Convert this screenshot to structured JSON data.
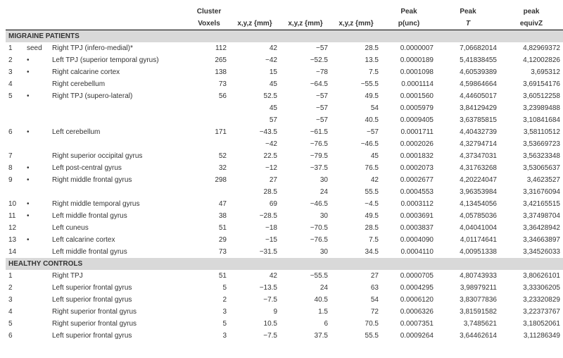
{
  "headers": {
    "cluster": "Cluster",
    "voxels": "Voxels",
    "coord": "x,y,z {mm}",
    "peak": "Peak",
    "peak_lower": "peak",
    "punc": "p(unc)",
    "t": "T",
    "z": "equivZ"
  },
  "sections": [
    {
      "title": "MIGRAINE PATIENTS",
      "rows": [
        {
          "idx": "1",
          "dot": "seed",
          "region": "Right TPJ (infero-medial)*",
          "voxels": "112",
          "x": "42",
          "y": "−57",
          "z": "28.5",
          "p": "0.0000007",
          "t": "7,06682014",
          "zv": "4,82969372"
        },
        {
          "idx": "2",
          "dot": "•",
          "region": "Left TPJ (superior temporal gyrus)",
          "voxels": "265",
          "x": "−42",
          "y": "−52.5",
          "z": "13.5",
          "p": "0.0000189",
          "t": "5,41838455",
          "zv": "4,12002826"
        },
        {
          "idx": "3",
          "dot": "•",
          "region": "Right calcarine cortex",
          "voxels": "138",
          "x": "15",
          "y": "−78",
          "z": "7.5",
          "p": "0.0001098",
          "t": "4,60539389",
          "zv": "3,695312"
        },
        {
          "idx": "4",
          "dot": "",
          "region": "Right cerebellum",
          "voxels": "73",
          "x": "45",
          "y": "−64.5",
          "z": "−55.5",
          "p": "0.0001114",
          "t": "4,59864664",
          "zv": "3,69154176"
        },
        {
          "idx": "5",
          "dot": "•",
          "region": "Right TPJ (supero-lateral)",
          "voxels": "56",
          "x": "52.5",
          "y": "−57",
          "z": "49.5",
          "p": "0.0001560",
          "t": "4,44605017",
          "zv": "3,60512258"
        },
        {
          "idx": "",
          "dot": "",
          "region": "",
          "voxels": "",
          "x": "45",
          "y": "−57",
          "z": "54",
          "p": "0.0005979",
          "t": "3,84129429",
          "zv": "3,23989488"
        },
        {
          "idx": "",
          "dot": "",
          "region": "",
          "voxels": "",
          "x": "57",
          "y": "−57",
          "z": "40.5",
          "p": "0.0009405",
          "t": "3,63785815",
          "zv": "3,10841684"
        },
        {
          "idx": "6",
          "dot": "•",
          "region": "Left cerebellum",
          "voxels": "171",
          "x": "−43.5",
          "y": "−61.5",
          "z": "−57",
          "p": "0.0001711",
          "t": "4,40432739",
          "zv": "3,58110512"
        },
        {
          "idx": "",
          "dot": "",
          "region": "",
          "voxels": "",
          "x": "−42",
          "y": "−76.5",
          "z": "−46.5",
          "p": "0.0002026",
          "t": "4,32794714",
          "zv": "3,53669723"
        },
        {
          "idx": "7",
          "dot": "",
          "region": "Right superior occipital gyrus",
          "voxels": "52",
          "x": "22.5",
          "y": "−79.5",
          "z": "45",
          "p": "0.0001832",
          "t": "4,37347031",
          "zv": "3,56323348"
        },
        {
          "idx": "8",
          "dot": "•",
          "region": "Left post-central gyrus",
          "voxels": "32",
          "x": "−12",
          "y": "−37.5",
          "z": "76.5",
          "p": "0.0002073",
          "t": "4,31763268",
          "zv": "3,53065637"
        },
        {
          "idx": "9",
          "dot": "•",
          "region": "Right middle frontal gyrus",
          "voxels": "298",
          "x": "27",
          "y": "30",
          "z": "42",
          "p": "0.0002677",
          "t": "4,20224047",
          "zv": "3,4623527"
        },
        {
          "idx": "",
          "dot": "",
          "region": "",
          "voxels": "",
          "x": "28.5",
          "y": "24",
          "z": "55.5",
          "p": "0.0004553",
          "t": "3,96353984",
          "zv": "3,31676094"
        },
        {
          "idx": "10",
          "dot": "•",
          "region": "Right middle temporal gyrus",
          "voxels": "47",
          "x": "69",
          "y": "−46.5",
          "z": "−4.5",
          "p": "0.0003112",
          "t": "4,13454056",
          "zv": "3,42165515"
        },
        {
          "idx": "11",
          "dot": "•",
          "region": "Left middle frontal gyrus",
          "voxels": "38",
          "x": "−28.5",
          "y": "30",
          "z": "49.5",
          "p": "0.0003691",
          "t": "4,05785036",
          "zv": "3,37498704"
        },
        {
          "idx": "12",
          "dot": "",
          "region": "Left cuneus",
          "voxels": "51",
          "x": "−18",
          "y": "−70.5",
          "z": "28.5",
          "p": "0.0003837",
          "t": "4,04041004",
          "zv": "3,36428942"
        },
        {
          "idx": "13",
          "dot": "•",
          "region": "Left calcarine cortex",
          "voxels": "29",
          "x": "−15",
          "y": "−76.5",
          "z": "7.5",
          "p": "0.0004090",
          "t": "4,01174641",
          "zv": "3,34663897"
        },
        {
          "idx": "14",
          "dot": "",
          "region": "Left middle frontal gyrus",
          "voxels": "73",
          "x": "−31.5",
          "y": "30",
          "z": "34.5",
          "p": "0.0004110",
          "t": "4,00951338",
          "zv": "3,34526033"
        }
      ]
    },
    {
      "title": "HEALTHY CONTROLS",
      "rows": [
        {
          "idx": "1",
          "dot": "",
          "region": "Right TPJ",
          "voxels": "51",
          "x": "42",
          "y": "−55.5",
          "z": "27",
          "p": "0.0000705",
          "t": "4,80743933",
          "zv": "3,80626101"
        },
        {
          "idx": "2",
          "dot": "",
          "region": "Left superior frontal gyrus",
          "voxels": "5",
          "x": "−13.5",
          "y": "24",
          "z": "63",
          "p": "0.0004295",
          "t": "3,98979211",
          "zv": "3,33306205"
        },
        {
          "idx": "3",
          "dot": "",
          "region": "Left superior frontal gyrus",
          "voxels": "2",
          "x": "−7.5",
          "y": "40.5",
          "z": "54",
          "p": "0.0006120",
          "t": "3,83077836",
          "zv": "3,23320829"
        },
        {
          "idx": "4",
          "dot": "",
          "region": "Right superior frontal gyrus",
          "voxels": "3",
          "x": "9",
          "y": "1.5",
          "z": "72",
          "p": "0.0006326",
          "t": "3,81591582",
          "zv": "3,22373767"
        },
        {
          "idx": "5",
          "dot": "",
          "region": "Right superior frontal gyrus",
          "voxels": "5",
          "x": "10.5",
          "y": "6",
          "z": "70.5",
          "p": "0.0007351",
          "t": "3,7485621",
          "zv": "3,18052061"
        },
        {
          "idx": "6",
          "dot": "",
          "region": "Left superior frontal gyrus",
          "voxels": "3",
          "x": "−7.5",
          "y": "37.5",
          "z": "55.5",
          "p": "0.0009264",
          "t": "3,64462614",
          "zv": "3,11286349"
        }
      ]
    }
  ]
}
